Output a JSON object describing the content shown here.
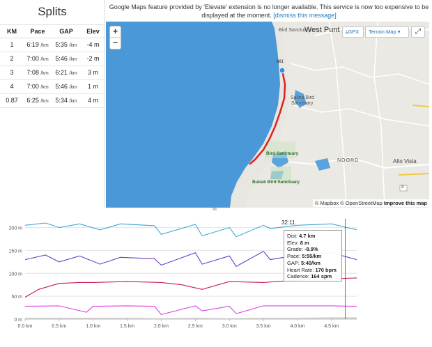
{
  "splits": {
    "title": "Splits",
    "headers": [
      "KM",
      "Pace",
      "GAP",
      "Elev"
    ],
    "rows": [
      {
        "km": "1",
        "pace": "6:19",
        "gap": "5:35",
        "elev": "-4 m"
      },
      {
        "km": "2",
        "pace": "7:00",
        "gap": "5:46",
        "elev": "-2 m"
      },
      {
        "km": "3",
        "pace": "7:08",
        "gap": "6:21",
        "elev": "3 m"
      },
      {
        "km": "4",
        "pace": "7:00",
        "gap": "5:46",
        "elev": "1 m"
      },
      {
        "km": "0.87",
        "pace": "6:25",
        "gap": "5:34",
        "elev": "4 m"
      }
    ],
    "unit": "/km"
  },
  "notice": {
    "text": "Google Maps feature provided by 'Elevate' extension is no longer available. This service is now too expensive to be displayed at the moment.",
    "link": "[dismiss this message]"
  },
  "map": {
    "zoom_in": "+",
    "zoom_out": "−",
    "gpx_label": "GPX",
    "terrain_label": "Terrain Map",
    "attribution_mapbox": "© Mapbox",
    "attribution_osm": "© OpenStreetMap",
    "attribution_improve": "Improve this map",
    "places": {
      "west_punt": "West Punt",
      "bird_sanctuary_top": "Bird Sanctuary",
      "bird_sanctuary_mid": "Bird Sanctuary",
      "bubali": "Bubali Bird Sanctuary",
      "alto_vista": "Alto Vista",
      "noord": "NOORD",
      "salina_1": "Salina Bird",
      "salina_2": "Sanctuary",
      "marker_km": "981",
      "road_3": "3"
    },
    "colors": {
      "water": "#4a98d8",
      "land": "#e8e6e1",
      "route": "#e02020"
    }
  },
  "chart_data": {
    "type": "line",
    "x_ticks": [
      "0.0 km",
      "0.5 km",
      "1.0 km",
      "1.5 km",
      "2.0 km",
      "2.5 km",
      "3.0 km",
      "3.5 km",
      "4.0 km",
      "4.5 km"
    ],
    "y_ticks": [
      "200 m",
      "150 m",
      "100 m",
      "50 m",
      "0 m"
    ],
    "xlim": [
      0,
      4.87
    ],
    "ylim": [
      0,
      210
    ],
    "series": [
      {
        "color": "#3aa8d8",
        "x": [
          0,
          0.3,
          0.5,
          0.8,
          1.1,
          1.4,
          1.9,
          2.0,
          2.5,
          2.6,
          3.0,
          3.1,
          3.5,
          3.6,
          4.0,
          4.5,
          4.87
        ],
        "values": [
          205,
          210,
          200,
          208,
          195,
          208,
          204,
          185,
          207,
          182,
          200,
          180,
          205,
          198,
          205,
          208,
          195
        ]
      },
      {
        "color": "#6a3dc8",
        "x": [
          0,
          0.3,
          0.5,
          0.8,
          1.1,
          1.4,
          1.9,
          2.0,
          2.5,
          2.6,
          3.0,
          3.1,
          3.5,
          3.6,
          4.0,
          4.5,
          4.87
        ],
        "values": [
          130,
          140,
          125,
          138,
          120,
          135,
          132,
          118,
          145,
          120,
          138,
          115,
          148,
          130,
          140,
          145,
          130
        ]
      },
      {
        "color": "#c8185a",
        "x": [
          0,
          0.2,
          0.5,
          0.8,
          1.0,
          1.5,
          2.0,
          2.3,
          2.6,
          3.0,
          3.5,
          4.0,
          4.5,
          4.87
        ],
        "values": [
          48,
          65,
          78,
          80,
          80,
          82,
          80,
          75,
          65,
          82,
          80,
          85,
          88,
          90
        ]
      },
      {
        "color": "#e040e0",
        "x": [
          0,
          0.5,
          0.9,
          1.0,
          1.5,
          1.9,
          2.0,
          2.5,
          2.6,
          3.0,
          3.1,
          3.5,
          4.0,
          4.5,
          4.87
        ],
        "values": [
          28,
          29,
          15,
          28,
          29,
          28,
          10,
          29,
          18,
          28,
          12,
          29,
          29,
          29,
          28
        ]
      },
      {
        "color": "#bdbdbd",
        "x": [
          0,
          0.5,
          1.0,
          1.5,
          2.0,
          2.5,
          3.0,
          3.5,
          4.0,
          4.5,
          4.87
        ],
        "values": [
          3,
          3,
          3,
          3,
          2,
          3,
          2,
          3,
          3,
          4,
          4
        ]
      }
    ],
    "cursor_x": 4.7,
    "tooltip": {
      "time": "32:11",
      "dist_label": "Dist:",
      "dist": "4.7 km",
      "elev_label": "Elev:",
      "elev": "8 m",
      "grade_label": "Grade:",
      "grade": "-8.9%",
      "pace_label": "Pace:",
      "pace": "5:55/km",
      "gap_label": "GAP:",
      "gap": "5:40/km",
      "hr_label": "Heart Rate:",
      "hr": "170 bpm",
      "cad_label": "Cadence:",
      "cad": "164 spm"
    }
  }
}
